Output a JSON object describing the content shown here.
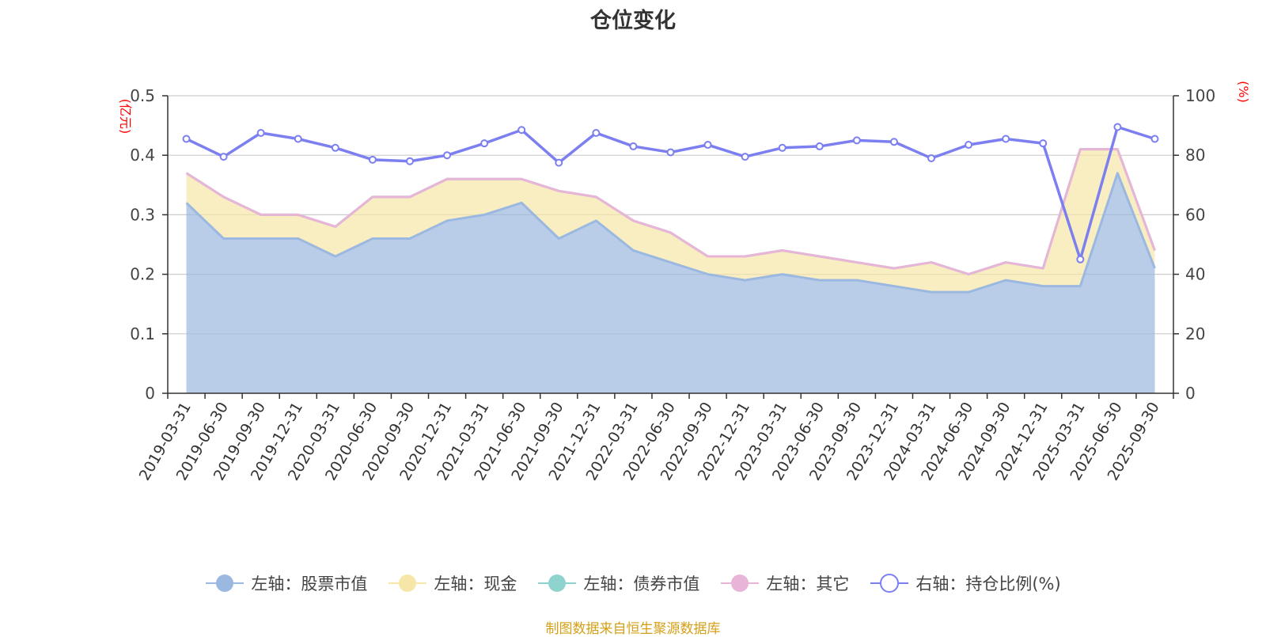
{
  "chart_data": {
    "type": "area",
    "title": "仓位变化",
    "left_axis_unit": "(亿元)",
    "right_axis_unit": "(%)",
    "left_ylim": [
      0,
      0.5
    ],
    "left_ticks": [
      "0",
      "0.1",
      "0.2",
      "0.3",
      "0.4",
      "0.5"
    ],
    "right_ylim": [
      0,
      100
    ],
    "right_ticks": [
      "0",
      "20",
      "40",
      "60",
      "80",
      "100"
    ],
    "categories": [
      "2019-03-31",
      "2019-06-30",
      "2019-09-30",
      "2019-12-31",
      "2020-03-31",
      "2020-06-30",
      "2020-09-30",
      "2020-12-31",
      "2021-03-31",
      "2021-06-30",
      "2021-09-30",
      "2021-12-31",
      "2022-03-31",
      "2022-06-30",
      "2022-09-30",
      "2022-12-31",
      "2023-03-31",
      "2023-06-30",
      "2023-09-30",
      "2023-12-31",
      "2024-03-31",
      "2024-06-30",
      "2024-09-30",
      "2024-12-31",
      "2025-03-31",
      "2025-06-30",
      "2025-09-30"
    ],
    "series": [
      {
        "name": "左轴：股票市值",
        "axis": "left",
        "kind": "stacked-area",
        "color": "#9bb8e0",
        "values": [
          0.32,
          0.26,
          0.26,
          0.26,
          0.23,
          0.26,
          0.26,
          0.29,
          0.3,
          0.32,
          0.26,
          0.29,
          0.24,
          0.22,
          0.2,
          0.19,
          0.2,
          0.19,
          0.19,
          0.18,
          0.17,
          0.17,
          0.19,
          0.18,
          0.18,
          0.37,
          0.21
        ]
      },
      {
        "name": "左轴：现金",
        "axis": "left",
        "kind": "stacked-area",
        "color": "#f6e7a8",
        "values": [
          0.05,
          0.07,
          0.04,
          0.04,
          0.05,
          0.07,
          0.07,
          0.07,
          0.06,
          0.04,
          0.08,
          0.04,
          0.05,
          0.05,
          0.03,
          0.04,
          0.04,
          0.04,
          0.03,
          0.03,
          0.05,
          0.03,
          0.03,
          0.03,
          0.23,
          0.04,
          0.03
        ]
      },
      {
        "name": "左轴：债券市值",
        "axis": "left",
        "kind": "stacked-area",
        "color": "#8fd3cf",
        "values": [
          0,
          0,
          0,
          0,
          0,
          0,
          0,
          0,
          0,
          0,
          0,
          0,
          0,
          0,
          0,
          0,
          0,
          0,
          0,
          0,
          0,
          0,
          0,
          0,
          0,
          0,
          0
        ]
      },
      {
        "name": "左轴：其它",
        "axis": "left",
        "kind": "stacked-area",
        "color": "#e8b4d8",
        "values": [
          0,
          0,
          0,
          0,
          0,
          0,
          0,
          0,
          0,
          0,
          0,
          0,
          0,
          0,
          0,
          0,
          0,
          0,
          0,
          0,
          0,
          0,
          0,
          0,
          0,
          0,
          0
        ]
      },
      {
        "name": "右轴：持仓比例(%)",
        "axis": "right",
        "kind": "line",
        "color": "#7b7ff0",
        "values": [
          85.5,
          79.5,
          87.5,
          85.5,
          82.5,
          78.5,
          78,
          80,
          84,
          88.5,
          77.5,
          87.5,
          83,
          81,
          83.5,
          79.5,
          82.5,
          83,
          85,
          84.5,
          79,
          83.5,
          85.5,
          84,
          45,
          89.5,
          85.5
        ]
      }
    ],
    "legend_position": "bottom",
    "grid": true
  },
  "source_note": "制图数据来自恒生聚源数据库"
}
